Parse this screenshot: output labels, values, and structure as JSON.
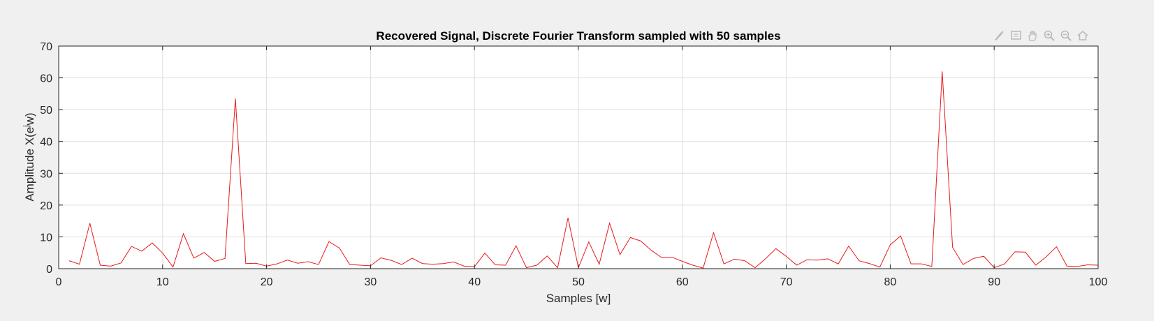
{
  "figure": {
    "background": "#f0f0f0"
  },
  "toolbar": [
    {
      "name": "brush-icon",
      "icon": "brush"
    },
    {
      "name": "data-tip-icon",
      "icon": "datatip"
    },
    {
      "name": "pan-hand-icon",
      "icon": "hand"
    },
    {
      "name": "zoom-in-icon",
      "icon": "zoom-in"
    },
    {
      "name": "zoom-out-icon",
      "icon": "zoom-out"
    },
    {
      "name": "home-icon",
      "icon": "home"
    }
  ],
  "chart_data": {
    "type": "line",
    "title": "Recovered Signal, Discrete Fourier Transform sampled with 50 samples",
    "xlabel": "Samples [w]",
    "ylabel": "Amplitude X(e^jw)",
    "xlim": [
      0,
      100
    ],
    "ylim": [
      0,
      70
    ],
    "xticks": [
      0,
      10,
      20,
      30,
      40,
      50,
      60,
      70,
      80,
      90,
      100
    ],
    "yticks": [
      0,
      10,
      20,
      30,
      40,
      50,
      60,
      70
    ],
    "grid": true,
    "line_color": "#e8191a",
    "series": [
      {
        "x": [
          1,
          2,
          3,
          4,
          5,
          6,
          7,
          8,
          9,
          10,
          11,
          12,
          13,
          14,
          15,
          16,
          17,
          18,
          19,
          20,
          21,
          22,
          23,
          24,
          25,
          26,
          27,
          28,
          29,
          30,
          31,
          32,
          33,
          34,
          35,
          36,
          37,
          38,
          39,
          40,
          41,
          42,
          43,
          44,
          45,
          46,
          47,
          48,
          49,
          50,
          51,
          52,
          53,
          54,
          55,
          56,
          57,
          58,
          59,
          60,
          61,
          62,
          63,
          64,
          65,
          66,
          67,
          68,
          69,
          70,
          71,
          72,
          73,
          74,
          75,
          76,
          77,
          78,
          79,
          80,
          81,
          82,
          83,
          84,
          85,
          86,
          87,
          88,
          89,
          90,
          91,
          92,
          93,
          94,
          95,
          96,
          97,
          98,
          99,
          100
        ],
        "values": [
          2.5,
          1.4,
          14.3,
          1.1,
          0.8,
          1.8,
          7,
          5.5,
          8.1,
          4.9,
          0.5,
          11,
          3.3,
          5.1,
          2.3,
          3.2,
          53.5,
          1.6,
          1.7,
          0.8,
          1.5,
          2.7,
          1.7,
          2.2,
          1.3,
          8.5,
          6.5,
          1.3,
          1.1,
          0.9,
          3.4,
          2.6,
          1.3,
          3.3,
          1.6,
          1.4,
          1.6,
          2.1,
          0.8,
          0.6,
          4.9,
          1.2,
          1.1,
          7.2,
          0.3,
          1.1,
          4,
          0.3,
          16,
          0.3,
          8.4,
          1.4,
          14.3,
          4.4,
          9.8,
          8.7,
          5.8,
          3.5,
          3.6,
          2.3,
          1.1,
          0.2,
          11.3,
          1.5,
          3,
          2.5,
          0.3,
          3.1,
          6.3,
          3.9,
          1.1,
          2.8,
          2.7,
          3.1,
          1.5,
          7.1,
          2.5,
          1.6,
          0.5,
          7.5,
          10.3,
          1.5,
          1.5,
          0.7,
          62,
          6.7,
          1.3,
          3.2,
          3.9,
          0.3,
          1.5,
          5.3,
          5.2,
          1.1,
          3.7,
          6.9,
          0.8,
          0.7,
          1.2,
          1.1
        ]
      }
    ]
  }
}
